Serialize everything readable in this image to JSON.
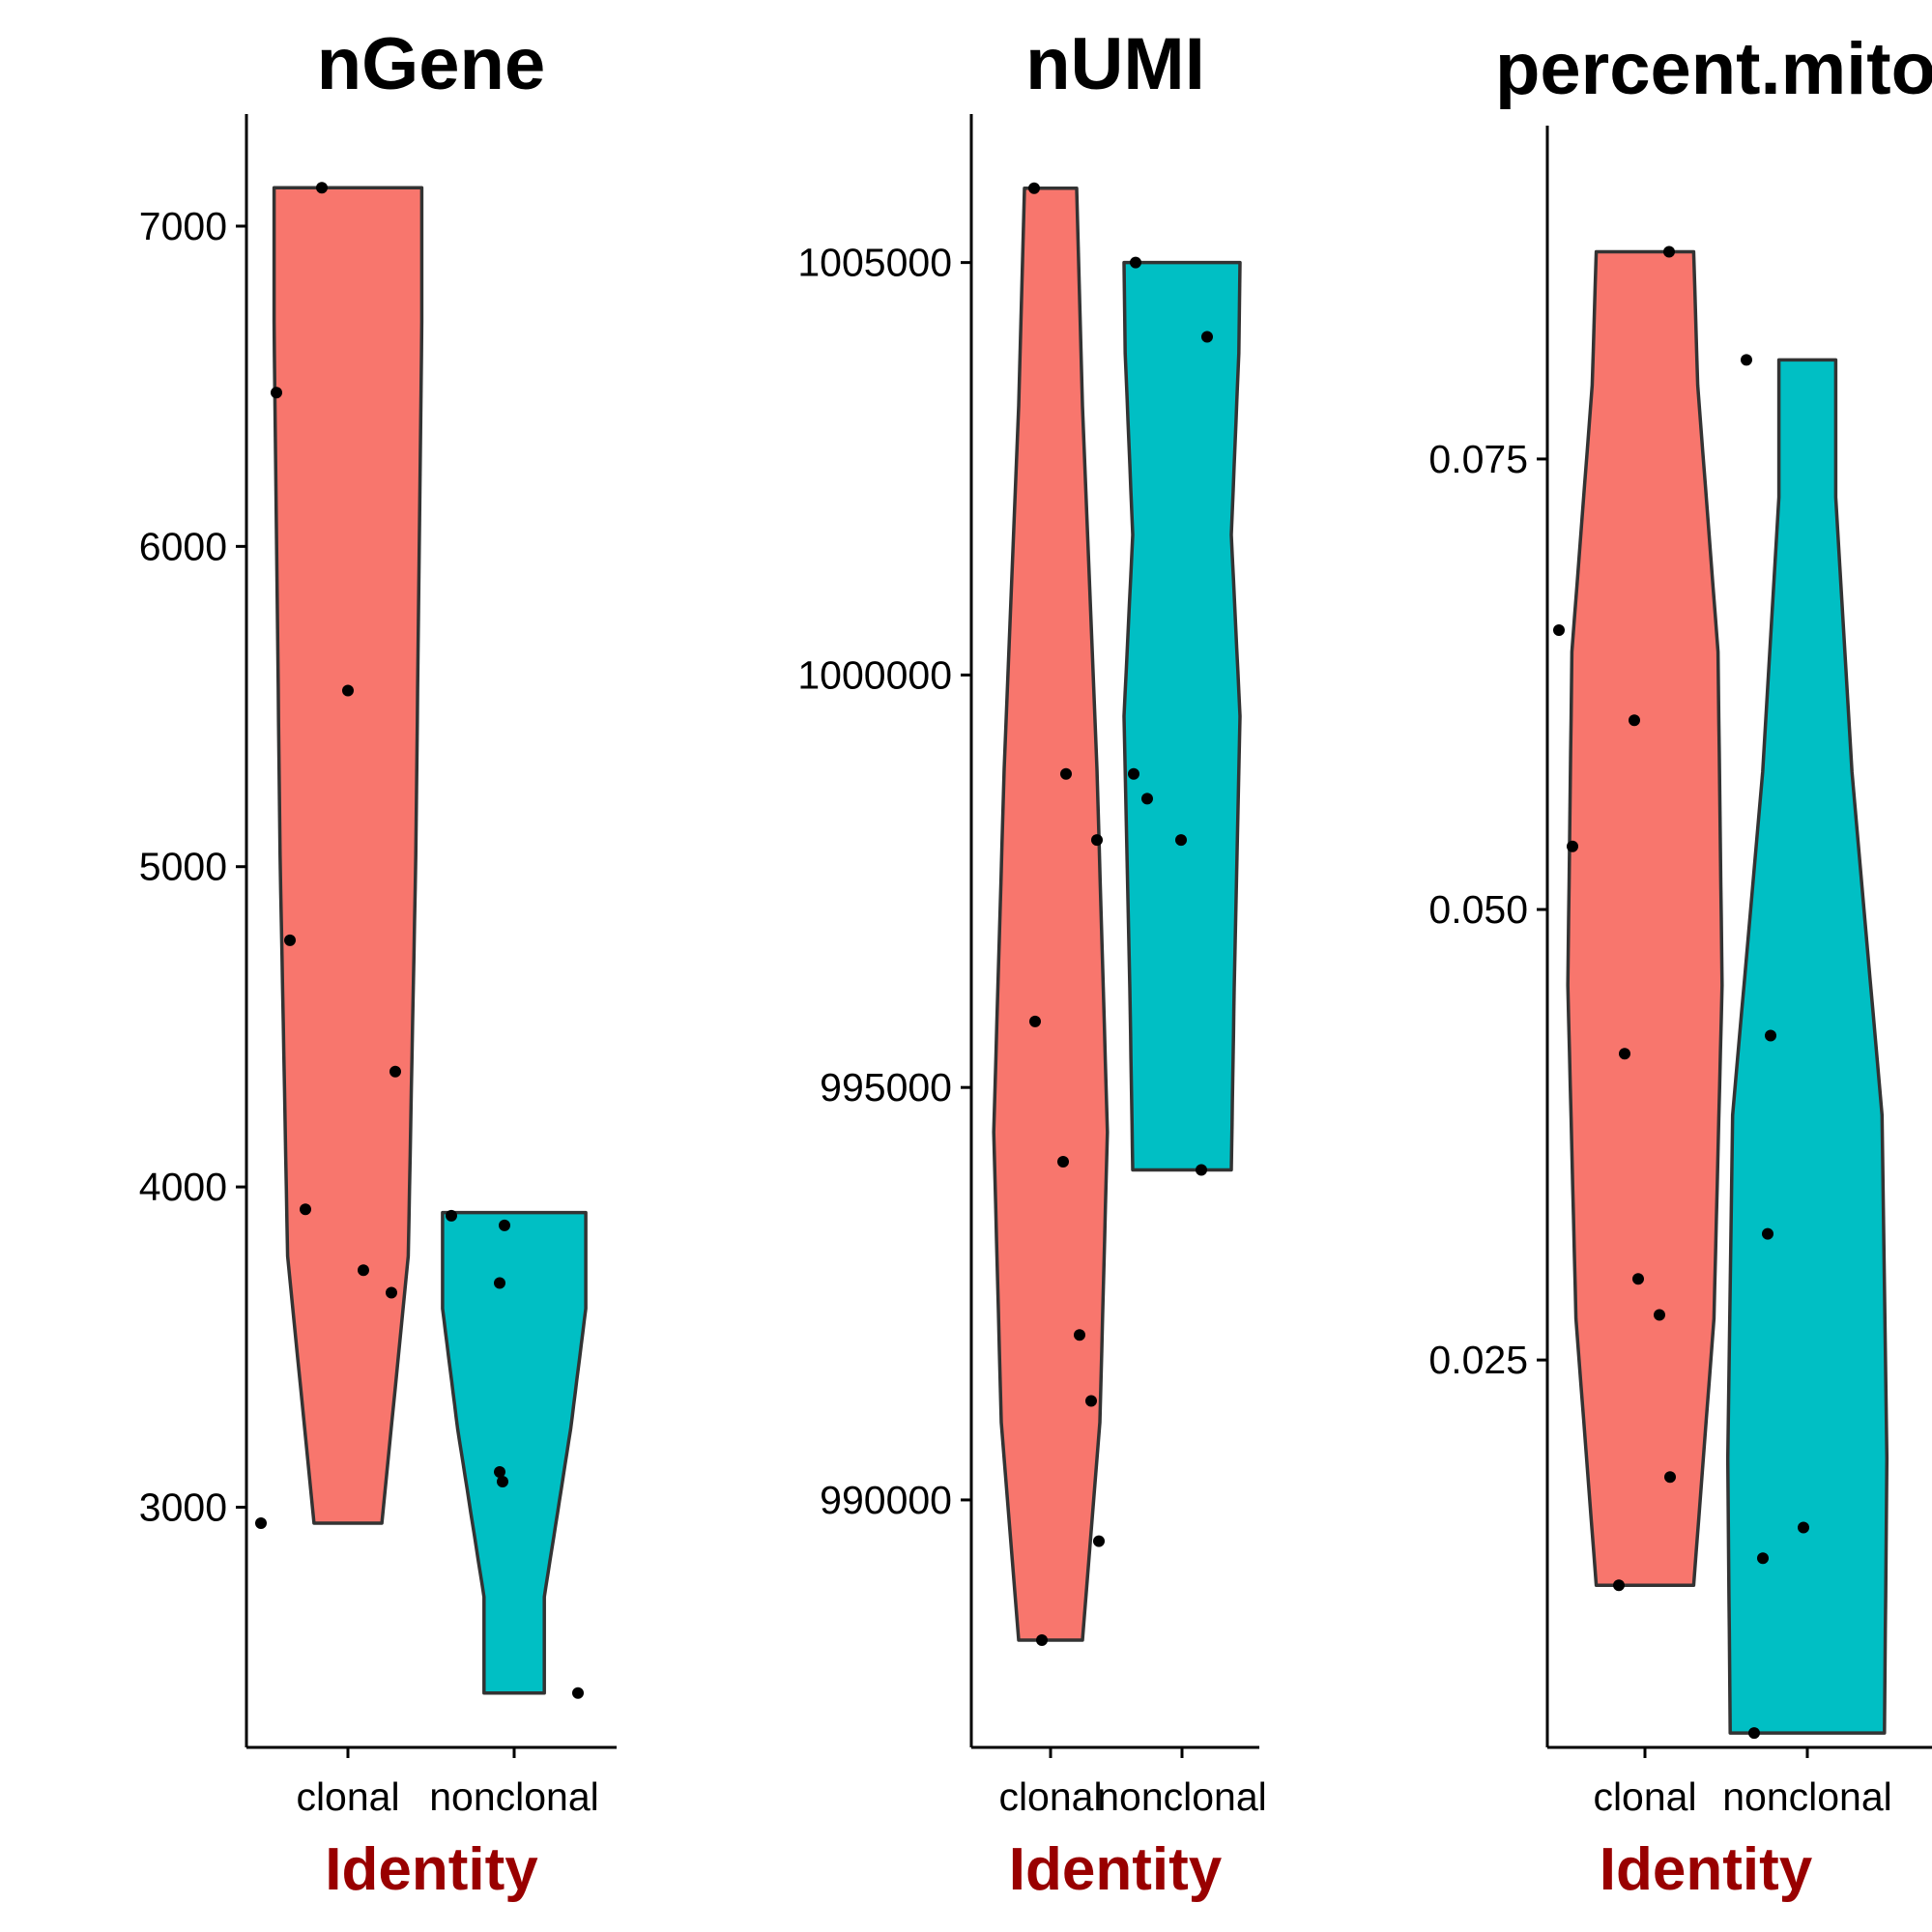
{
  "colors": {
    "clonal": "#F8766D",
    "nonclonal": "#00BFC4",
    "xlabel": "#990000"
  },
  "chart_data": [
    {
      "type": "violin",
      "title": "nGene",
      "xlabel": "Identity",
      "ylabel": "",
      "categories": [
        "clonal",
        "nonclonal"
      ],
      "ylim": [
        2250,
        7350
      ],
      "yticks": [
        3000,
        4000,
        5000,
        6000,
        7000
      ],
      "ytick_labels": [
        "3000",
        "4000",
        "5000",
        "6000",
        "7000"
      ],
      "series": [
        {
          "name": "clonal",
          "min": 2950,
          "max": 7120,
          "values": [
            7120,
            6480,
            5550,
            4770,
            4360,
            3930,
            3740,
            3670,
            2950
          ]
        },
        {
          "name": "nonclonal",
          "min": 2420,
          "max": 3920,
          "values": [
            3910,
            3880,
            3700,
            3110,
            3080,
            2420
          ]
        }
      ]
    },
    {
      "type": "violin",
      "title": "nUMI",
      "xlabel": "Identity",
      "ylabel": "",
      "categories": [
        "clonal",
        "nonclonal"
      ],
      "ylim": [
        987000,
        1006800
      ],
      "yticks": [
        990000,
        995000,
        1000000,
        1005000
      ],
      "ytick_labels": [
        "990000",
        "995000",
        "1000000",
        "1005000"
      ],
      "series": [
        {
          "name": "clonal",
          "min": 988300,
          "max": 1005900,
          "values": [
            1005900,
            998800,
            998000,
            995800,
            994100,
            992000,
            991200,
            989500,
            988300
          ]
        },
        {
          "name": "nonclonal",
          "min": 994000,
          "max": 1005000,
          "values": [
            1005000,
            1004100,
            998800,
            998500,
            998000,
            994000
          ]
        }
      ]
    },
    {
      "type": "violin",
      "title": "percent.mito",
      "xlabel": "Identity",
      "ylabel": "",
      "categories": [
        "clonal",
        "nonclonal"
      ],
      "ylim": [
        0.0035,
        0.0935
      ],
      "yticks": [
        0.025,
        0.05,
        0.075
      ],
      "ytick_labels": [
        "0.025",
        "0.050",
        "0.075"
      ],
      "series": [
        {
          "name": "clonal",
          "min": 0.0125,
          "max": 0.0865,
          "values": [
            0.0865,
            0.0655,
            0.0605,
            0.0535,
            0.042,
            0.0295,
            0.0275,
            0.0185,
            0.0125
          ]
        },
        {
          "name": "nonclonal",
          "min": 0.0043,
          "max": 0.0805,
          "values": [
            0.0805,
            0.043,
            0.032,
            0.0157,
            0.014,
            0.0043
          ]
        }
      ]
    }
  ]
}
